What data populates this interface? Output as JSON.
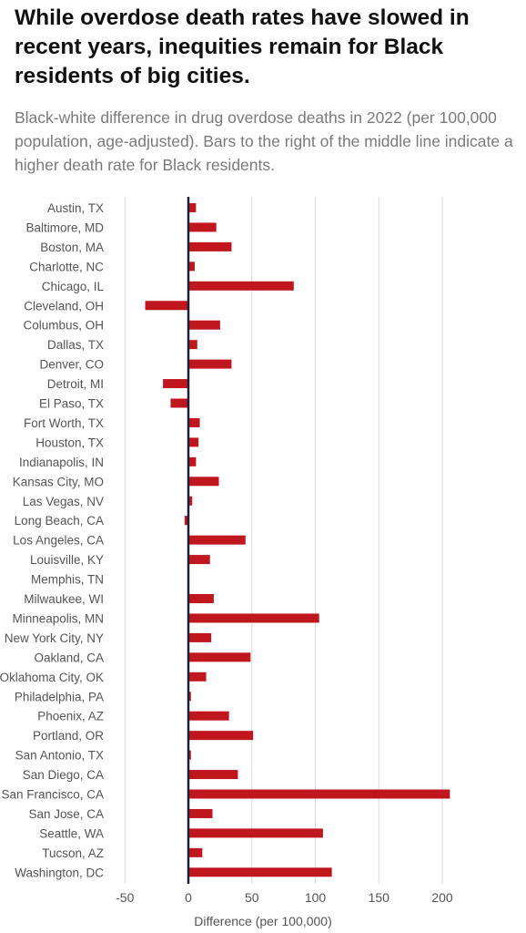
{
  "title": "While overdose death rates have slowed in recent years, inequities remain for Black residents of big cities.",
  "subtitle": "Black-white difference in drug overdose deaths in 2022 (per 100,000 population, age-adjusted). Bars to the right of the middle line indicate a higher death rate for Black residents.",
  "colors": {
    "bar": "#c0161e",
    "zero_line": "#1a1f3a",
    "grid": "#dcdcdc",
    "text": "#555555"
  },
  "chart_data": {
    "type": "bar",
    "orientation": "horizontal",
    "title": "While overdose death rates have slowed in recent years, inequities remain for Black residents of big cities.",
    "xlabel": "Difference (per 100,000)",
    "ylabel": "",
    "xlim": [
      -55,
      225
    ],
    "xticks": [
      -50,
      0,
      50,
      100,
      150,
      200
    ],
    "xtick_labels": [
      "-50",
      "0",
      "50",
      "100",
      "150",
      "200"
    ],
    "grid": true,
    "categories": [
      "Austin, TX",
      "Baltimore, MD",
      "Boston, MA",
      "Charlotte, NC",
      "Chicago, IL",
      "Cleveland, OH",
      "Columbus, OH",
      "Dallas, TX",
      "Denver, CO",
      "Detroit, MI",
      "El Paso, TX",
      "Fort Worth, TX",
      "Houston, TX",
      "Indianapolis, IN",
      "Kansas City, MO",
      "Las Vegas, NV",
      "Long Beach, CA",
      "Los Angeles, CA",
      "Louisville, KY",
      "Memphis, TN",
      "Milwaukee, WI",
      "Minneapolis, MN",
      "New York City, NY",
      "Oakland, CA",
      "Oklahoma City, OK",
      "Philadelphia, PA",
      "Phoenix, AZ",
      "Portland, OR",
      "San Antonio, TX",
      "San Diego, CA",
      "San Francisco, CA",
      "San Jose, CA",
      "Seattle, WA",
      "Tucson, AZ",
      "Washington, DC"
    ],
    "values": [
      6,
      22,
      34,
      5,
      83,
      -34,
      25,
      7,
      34,
      -20,
      -14,
      9,
      8,
      6,
      24,
      3,
      -3,
      45,
      17,
      0,
      20,
      103,
      18,
      49,
      14,
      2,
      32,
      51,
      2,
      39,
      206,
      19,
      106,
      11,
      113
    ]
  }
}
